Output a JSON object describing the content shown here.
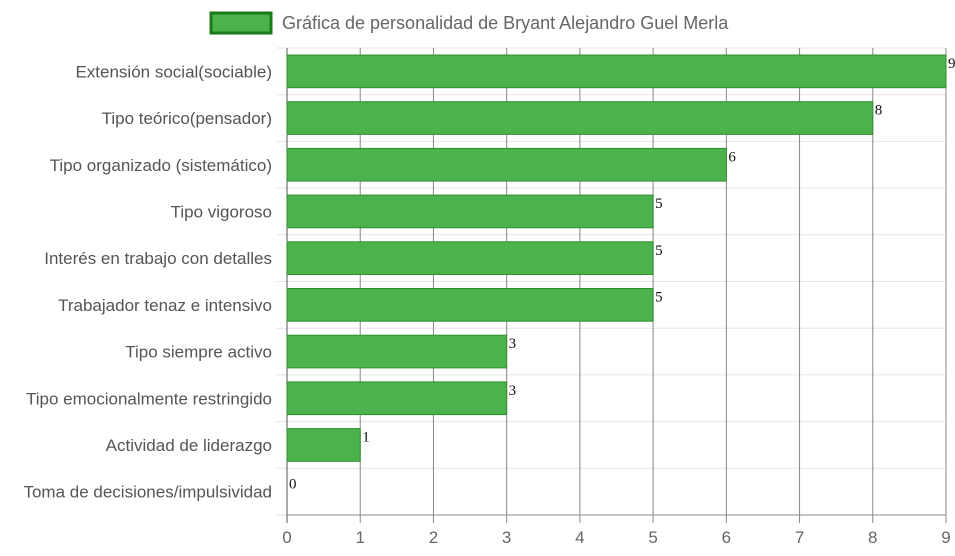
{
  "chart_data": {
    "type": "bar",
    "orientation": "horizontal",
    "legend": {
      "label": "Gráfica de personalidad de Bryant Alejandro Guel Merla",
      "placement": "top-center"
    },
    "categories": [
      "Extensión social(sociable)",
      "Tipo teórico(pensador)",
      "Tipo organizado (sistemático)",
      "Tipo vigoroso",
      "Interés en trabajo con detalles",
      "Trabajador tenaz e intensivo",
      "Tipo siempre activo",
      "Tipo emocionalmente restringido",
      "Actividad de liderazgo",
      "Toma de decisiones/impulsividad"
    ],
    "series": [
      {
        "name": "Gráfica de personalidad de Bryant Alejandro Guel Merla",
        "values": [
          9,
          8,
          6,
          5,
          5,
          5,
          3,
          3,
          1,
          0
        ]
      }
    ],
    "xticks": [
      "0",
      "1",
      "2",
      "3",
      "4",
      "5",
      "6",
      "7",
      "8",
      "9"
    ],
    "xlim": [
      0,
      9
    ],
    "grid": true,
    "data_labels": true,
    "colors": {
      "bar_fill": "#4cb34c",
      "bar_stroke": "#2f8f2f",
      "legend_fill": "#4cb34c",
      "legend_stroke": "#1a7a1a",
      "grid": "#e5e5e5",
      "grid_vertical": "#888888"
    }
  }
}
